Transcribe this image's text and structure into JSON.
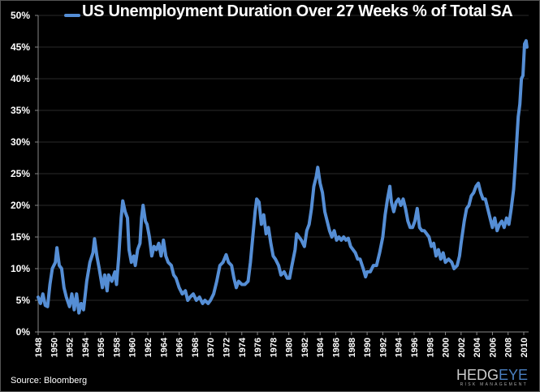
{
  "chart_data": {
    "type": "line",
    "title": "US Unemployment Duration Over 27 Weeks % of Total SA",
    "legend": [
      "US Unemployment Duration Over 27 Weeks % of Total SA"
    ],
    "legend_position": "top",
    "xlabel": "",
    "ylabel": "",
    "xlim": [
      1948,
      2010
    ],
    "ylim": [
      0,
      50
    ],
    "grid": "horizontal",
    "x_tick_labels": [
      "1948",
      "1950",
      "1952",
      "1954",
      "1956",
      "1958",
      "1960",
      "1962",
      "1964",
      "1966",
      "1968",
      "1970",
      "1972",
      "1974",
      "1976",
      "1978",
      "1980",
      "1982",
      "1984",
      "1986",
      "1988",
      "1990",
      "1992",
      "1994",
      "1996",
      "1998",
      "2000",
      "2002",
      "2004",
      "2006",
      "2008",
      "2010"
    ],
    "y_tick_labels": [
      "0%",
      "5%",
      "10%",
      "15%",
      "20%",
      "25%",
      "30%",
      "35%",
      "40%",
      "45%",
      "50%"
    ],
    "y_ticks": [
      0,
      5,
      10,
      15,
      20,
      25,
      30,
      35,
      40,
      45,
      50
    ],
    "series": [
      {
        "name": "US Unemployment Duration Over 27 Weeks % of Total SA",
        "color": "#558ed5",
        "x": [
          1948.0,
          1948.3,
          1948.6,
          1948.9,
          1949.2,
          1949.5,
          1949.8,
          1950.2,
          1950.4,
          1950.7,
          1951.0,
          1951.3,
          1951.6,
          1952.0,
          1952.3,
          1952.6,
          1952.9,
          1953.2,
          1953.5,
          1953.8,
          1954.2,
          1954.6,
          1955.0,
          1955.2,
          1955.5,
          1955.8,
          1956.2,
          1956.5,
          1956.8,
          1957.0,
          1957.4,
          1957.8,
          1958.0,
          1958.3,
          1958.6,
          1958.8,
          1959.1,
          1959.4,
          1959.6,
          1959.9,
          1960.2,
          1960.4,
          1960.7,
          1961.0,
          1961.2,
          1961.4,
          1961.7,
          1961.9,
          1962.2,
          1962.5,
          1962.8,
          1963.1,
          1963.4,
          1963.7,
          1964.0,
          1964.3,
          1964.6,
          1965.0,
          1965.3,
          1965.6,
          1966.0,
          1966.4,
          1966.8,
          1967.1,
          1967.4,
          1967.8,
          1968.2,
          1968.6,
          1969.0,
          1969.3,
          1969.7,
          1970.0,
          1970.4,
          1970.8,
          1971.2,
          1971.6,
          1972.0,
          1972.3,
          1972.7,
          1973.0,
          1973.3,
          1973.6,
          1974.0,
          1974.4,
          1974.8,
          1975.1,
          1975.4,
          1975.7,
          1975.9,
          1976.2,
          1976.5,
          1976.8,
          1977.1,
          1977.4,
          1977.7,
          1978.0,
          1978.3,
          1978.7,
          1979.0,
          1979.4,
          1979.8,
          1980.1,
          1980.4,
          1980.8,
          1981.0,
          1981.3,
          1981.6,
          1982.0,
          1982.3,
          1982.6,
          1982.9,
          1983.2,
          1983.5,
          1983.7,
          1984.0,
          1984.3,
          1984.6,
          1984.9,
          1985.2,
          1985.5,
          1985.8,
          1986.1,
          1986.4,
          1986.7,
          1987.0,
          1987.3,
          1987.6,
          1987.9,
          1988.2,
          1988.5,
          1988.8,
          1989.1,
          1989.5,
          1989.8,
          1990.0,
          1990.4,
          1990.8,
          1991.2,
          1991.6,
          1992.0,
          1992.3,
          1992.6,
          1992.9,
          1993.1,
          1993.4,
          1993.7,
          1994.0,
          1994.3,
          1994.6,
          1994.9,
          1995.2,
          1995.5,
          1995.8,
          1996.1,
          1996.4,
          1996.7,
          1997.0,
          1997.3,
          1997.6,
          1997.9,
          1998.2,
          1998.5,
          1998.8,
          1999.1,
          1999.4,
          1999.7,
          2000.0,
          2000.4,
          2000.8,
          2001.1,
          2001.5,
          2001.8,
          2002.0,
          2002.4,
          2002.7,
          2003.0,
          2003.3,
          2003.6,
          2003.9,
          2004.2,
          2004.5,
          2004.8,
          2005.1,
          2005.4,
          2005.7,
          2006.0,
          2006.3,
          2006.6,
          2006.9,
          2007.2,
          2007.5,
          2007.8,
          2008.1,
          2008.4,
          2008.7,
          2008.9,
          2009.1,
          2009.3,
          2009.5,
          2009.7,
          2009.9,
          2010.1,
          2010.3,
          2010.4
        ],
        "y": [
          5.5,
          4.5,
          6,
          4.2,
          4.0,
          7.5,
          10,
          11,
          13.3,
          10.5,
          10,
          7,
          5.5,
          4,
          6,
          3.5,
          6,
          3,
          4.5,
          3.5,
          8,
          11,
          12.5,
          14.7,
          12,
          10,
          7,
          9,
          6.5,
          9,
          8,
          9.5,
          7.5,
          12,
          18,
          20.7,
          19,
          18,
          13,
          11,
          12,
          10.5,
          13,
          14,
          18,
          20,
          17.5,
          17,
          15,
          12,
          13.5,
          13,
          14,
          12,
          14.5,
          12,
          11,
          10.5,
          9,
          8.5,
          7,
          6,
          6.5,
          5,
          5.5,
          6,
          5,
          5.5,
          4.5,
          5,
          4.5,
          5,
          6,
          8,
          10.5,
          11,
          12.2,
          11,
          10.5,
          8.5,
          7,
          8,
          7.5,
          7.5,
          8,
          11,
          15,
          19,
          21,
          20.5,
          17,
          18.5,
          15.5,
          16.5,
          14,
          12,
          11.5,
          10.5,
          9,
          9.5,
          8.5,
          8.5,
          10.5,
          13,
          15.5,
          15,
          14.5,
          13.5,
          16,
          17,
          19.5,
          23,
          24.5,
          26,
          23.5,
          22,
          19,
          17.5,
          16,
          15,
          16,
          14.5,
          15,
          14.5,
          15,
          14.5,
          14.8,
          13.5,
          13,
          12.5,
          11.5,
          11.5,
          10,
          8.7,
          9.5,
          9.5,
          10.5,
          10.5,
          12.5,
          15,
          18.5,
          21,
          23,
          20.5,
          19,
          20.5,
          21,
          20,
          21,
          19.5,
          17.5,
          16.5,
          16.5,
          17.5,
          19.5,
          16.5,
          16,
          16,
          15.5,
          15,
          13.5,
          14,
          12,
          13,
          11.5,
          12.5,
          11,
          11.5,
          11,
          10,
          10.5,
          12,
          14,
          17.5,
          19.5,
          20,
          21.5,
          22,
          23,
          23.5,
          22,
          21,
          21,
          19.5,
          18,
          16.5,
          18,
          16,
          17,
          17.5,
          16.5,
          18,
          17,
          19.5,
          22.5,
          26,
          30,
          34,
          36,
          40,
          40.5,
          45.5,
          46,
          45
        ]
      }
    ]
  },
  "footer": {
    "source": "Source: Bloomberg",
    "logo_text": "HEDGEYE",
    "logo_sub": "RISK MANAGEMENT"
  }
}
